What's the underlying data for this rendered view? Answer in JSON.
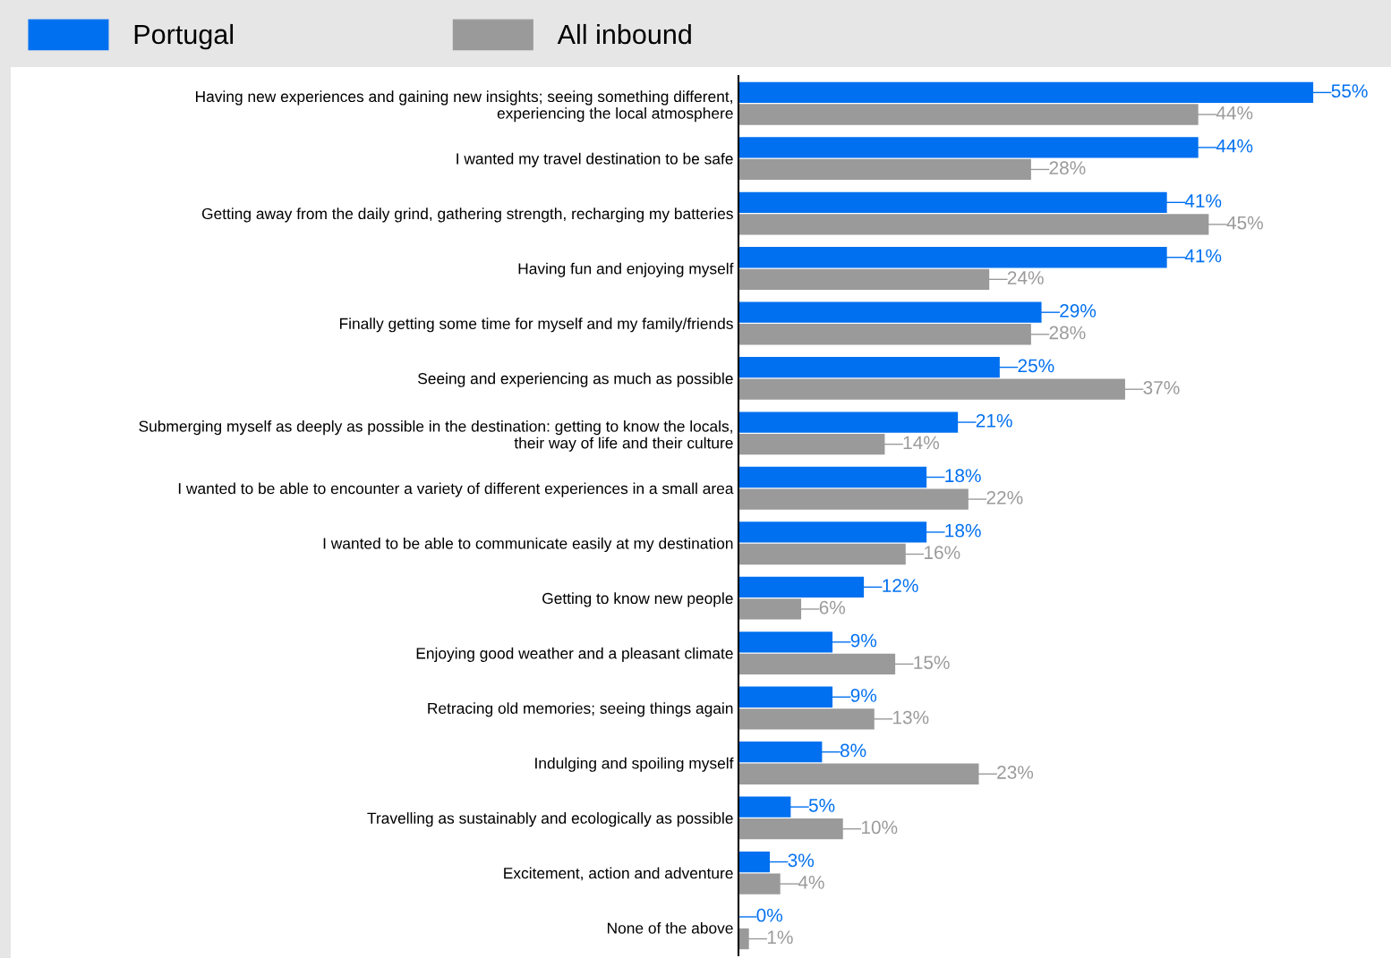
{
  "chart_data": {
    "type": "bar",
    "orientation": "horizontal",
    "categories": [
      "Having new experiences and gaining new insights; seeing something different,\nexperiencing the local atmosphere",
      "I wanted my travel destination to be safe",
      "Getting away from the daily grind, gathering strength, recharging my batteries",
      "Having fun and enjoying myself",
      "Finally getting some time for myself and my family/friends",
      "Seeing and experiencing as much as possible",
      "Submerging myself as deeply as possible in the destination: getting to know the locals,\ntheir way of life and their culture",
      "I wanted to be able to encounter a variety of different experiences in a small area",
      "I wanted to be able to communicate easily at my destination",
      "Getting to know new people",
      "Enjoying good weather and a pleasant climate",
      "Retracing old memories; seeing things again",
      "Indulging and spoiling myself",
      "Travelling as sustainably and ecologically as possible",
      "Excitement, action and adventure",
      "None of the above"
    ],
    "series": [
      {
        "name": "Portugal",
        "color": "#0070f0",
        "values": [
          55,
          44,
          41,
          41,
          29,
          25,
          21,
          18,
          18,
          12,
          9,
          9,
          8,
          5,
          3,
          0
        ],
        "value_labels": [
          "55%",
          "44%",
          "41%",
          "41%",
          "29%",
          "25%",
          "21%",
          "18%",
          "18%",
          "12%",
          "9%",
          "9%",
          "8%",
          "5%",
          "3%",
          "0%"
        ]
      },
      {
        "name": "All inbound",
        "color": "#9a9a9a",
        "values": [
          44,
          28,
          45,
          24,
          28,
          37,
          14,
          22,
          16,
          6,
          15,
          13,
          23,
          10,
          4,
          1
        ],
        "value_labels": [
          "44%",
          "28%",
          "45%",
          "24%",
          "28%",
          "37%",
          "14%",
          "22%",
          "16%",
          "6%",
          "15%",
          "13%",
          "23%",
          "10%",
          "4%",
          "1%"
        ]
      }
    ],
    "legend": "top left",
    "tick_labels": "y"
  }
}
